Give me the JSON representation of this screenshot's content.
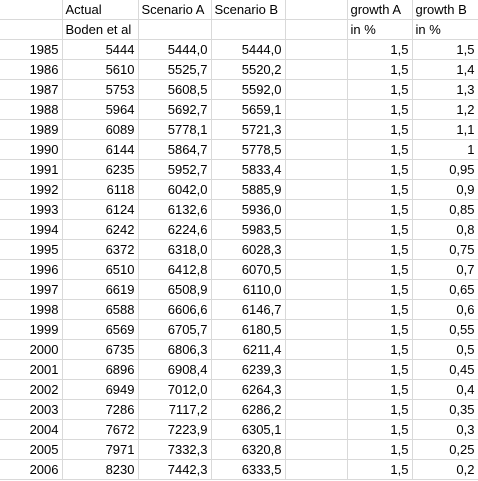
{
  "header": {
    "row1": [
      "",
      "Actual",
      "Scenario A",
      "Scenario B",
      "",
      "growth A",
      "growth B"
    ],
    "row2": [
      "",
      "Boden et al",
      "",
      "",
      "",
      "in %",
      "in %"
    ]
  },
  "rows": [
    [
      "1985",
      "5444",
      "5444,0",
      "5444,0",
      "",
      "1,5",
      "1,5"
    ],
    [
      "1986",
      "5610",
      "5525,7",
      "5520,2",
      "",
      "1,5",
      "1,4"
    ],
    [
      "1987",
      "5753",
      "5608,5",
      "5592,0",
      "",
      "1,5",
      "1,3"
    ],
    [
      "1988",
      "5964",
      "5692,7",
      "5659,1",
      "",
      "1,5",
      "1,2"
    ],
    [
      "1989",
      "6089",
      "5778,1",
      "5721,3",
      "",
      "1,5",
      "1,1"
    ],
    [
      "1990",
      "6144",
      "5864,7",
      "5778,5",
      "",
      "1,5",
      "1"
    ],
    [
      "1991",
      "6235",
      "5952,7",
      "5833,4",
      "",
      "1,5",
      "0,95"
    ],
    [
      "1992",
      "6118",
      "6042,0",
      "5885,9",
      "",
      "1,5",
      "0,9"
    ],
    [
      "1993",
      "6124",
      "6132,6",
      "5936,0",
      "",
      "1,5",
      "0,85"
    ],
    [
      "1994",
      "6242",
      "6224,6",
      "5983,5",
      "",
      "1,5",
      "0,8"
    ],
    [
      "1995",
      "6372",
      "6318,0",
      "6028,3",
      "",
      "1,5",
      "0,75"
    ],
    [
      "1996",
      "6510",
      "6412,8",
      "6070,5",
      "",
      "1,5",
      "0,7"
    ],
    [
      "1997",
      "6619",
      "6508,9",
      "6110,0",
      "",
      "1,5",
      "0,65"
    ],
    [
      "1998",
      "6588",
      "6606,6",
      "6146,7",
      "",
      "1,5",
      "0,6"
    ],
    [
      "1999",
      "6569",
      "6705,7",
      "6180,5",
      "",
      "1,5",
      "0,55"
    ],
    [
      "2000",
      "6735",
      "6806,3",
      "6211,4",
      "",
      "1,5",
      "0,5"
    ],
    [
      "2001",
      "6896",
      "6908,4",
      "6239,3",
      "",
      "1,5",
      "0,45"
    ],
    [
      "2002",
      "6949",
      "7012,0",
      "6264,3",
      "",
      "1,5",
      "0,4"
    ],
    [
      "2003",
      "7286",
      "7117,2",
      "6286,2",
      "",
      "1,5",
      "0,35"
    ],
    [
      "2004",
      "7672",
      "7223,9",
      "6305,1",
      "",
      "1,5",
      "0,3"
    ],
    [
      "2005",
      "7971",
      "7332,3",
      "6320,8",
      "",
      "1,5",
      "0,25"
    ],
    [
      "2006",
      "8230",
      "7442,3",
      "6333,5",
      "",
      "1,5",
      "0,2"
    ]
  ]
}
